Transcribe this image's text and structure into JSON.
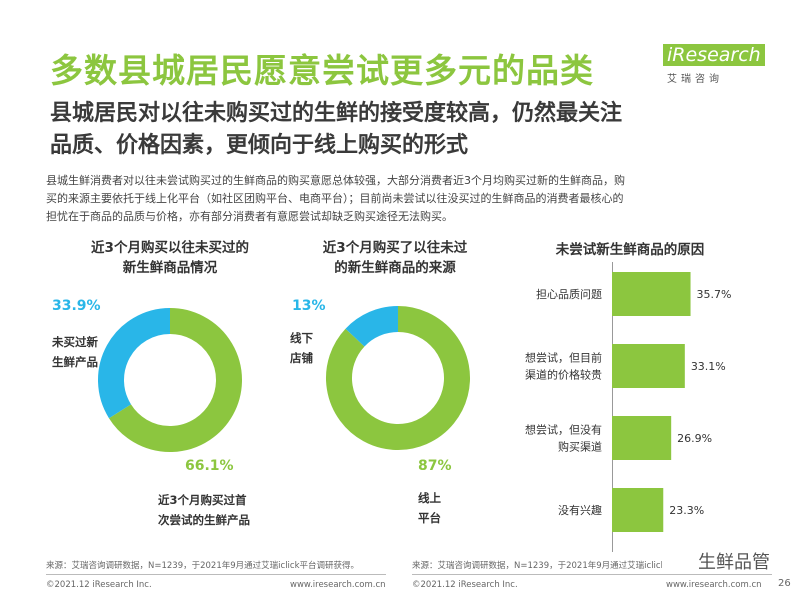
{
  "title": "多数县城居民愿意尝试更多元的品类",
  "logo": {
    "name": "iResearch",
    "sub": "艾瑞咨询"
  },
  "subtitle_line1": "县城居民对以往未购买过的生鲜的接受度较高，仍然最关注",
  "subtitle_line2": "品质、价格因素，更倾向于线上购买的形式",
  "description": [
    "县城生鲜消费者对以往未尝试购买过的生鲜商品的购买意愿总体较强，大部分消费者近3个月均购买过新的生鲜商品，购",
    "买的来源主要依托于线上化平台（如社区团购平台、电商平台）；目前尚未尝试以往没买过的生鲜商品的消费者最核心的",
    "担忧在于商品的品质与价格，亦有部分消费者有意愿尝试却缺乏购买途径无法购买。"
  ],
  "colors": {
    "green": "#8cc63f",
    "blue": "#29b6e8"
  },
  "chart_data": [
    {
      "type": "pie",
      "donut": true,
      "title": "近3个月购买以往未买过的新生鲜商品情况",
      "title_lines": [
        "近3个月购买以往未买过的",
        "新生鲜商品情况"
      ],
      "slices": [
        {
          "label": "近3个月购买过首次尝试的生鲜产品",
          "label_lines": [
            "近3个月购买过首",
            "次尝试的生鲜产品"
          ],
          "value": 66.1,
          "display": "66.1%",
          "color": "#8cc63f"
        },
        {
          "label": "未买过新生鲜产品",
          "label_lines": [
            "未买过新",
            "生鲜产品"
          ],
          "value": 33.9,
          "display": "33.9%",
          "color": "#29b6e8"
        }
      ]
    },
    {
      "type": "pie",
      "donut": true,
      "title": "近3个月购买了以往未过的新生鲜商品的来源",
      "title_lines": [
        "近3个月购买了以往未过",
        "的新生鲜商品的来源"
      ],
      "slices": [
        {
          "label": "线上平台",
          "label_lines": [
            "线上",
            "平台"
          ],
          "value": 87,
          "display": "87%",
          "color": "#8cc63f"
        },
        {
          "label": "线下店铺",
          "label_lines": [
            "线下",
            "店铺"
          ],
          "value": 13,
          "display": "13%",
          "color": "#29b6e8"
        }
      ]
    },
    {
      "type": "bar",
      "orientation": "horizontal",
      "title": "未尝试新生鲜商品的原因",
      "categories": [
        "担心品质问题",
        "想尝试，但目前渠道的价格较贵",
        "想尝试，但没有购买渠道",
        "没有兴趣"
      ],
      "category_lines": [
        [
          "担心品质问题"
        ],
        [
          "想尝试，但目前",
          "渠道的价格较贵"
        ],
        [
          "想尝试，但没有",
          "购买渠道"
        ],
        [
          "没有兴趣"
        ]
      ],
      "values": [
        35.7,
        33.1,
        26.9,
        23.3
      ],
      "value_labels": [
        "35.7%",
        "33.1%",
        "26.9%",
        "23.3%"
      ],
      "color": "#8cc63f"
    }
  ],
  "footer": {
    "source_left": "来源：艾瑞咨询调研数据，N=1239，于2021年9月通过艾瑞iclick平台调研获得。",
    "source_right": "来源：艾瑞咨询调研数据，N=1239，于2021年9月通过艾瑞iclick平台调研获得。",
    "copyright": "©2021.12 iResearch Inc.",
    "website": "www.iresearch.com.cn"
  },
  "watermark": "生鲜品管",
  "page_number": "26"
}
